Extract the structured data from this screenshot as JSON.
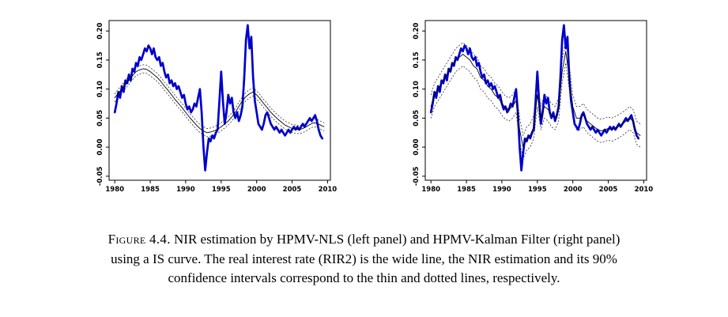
{
  "page": {
    "background": "#ffffff"
  },
  "caption": {
    "label": "Figure 4.4.",
    "text": "NIR estimation by HPMV-NLS (left panel) and HPMV-Kalman Filter (right panel) using a IS curve. The real interest rate (RIR2) is the wide line, the NIR estimation and its 90% confidence intervals correspond to the thin and dotted lines, respectively."
  },
  "chart_shared": {
    "rir2": {
      "x_start": 1980,
      "x_step": 0.25,
      "values": [
        0.06,
        0.075,
        0.095,
        0.085,
        0.105,
        0.095,
        0.115,
        0.11,
        0.125,
        0.115,
        0.135,
        0.13,
        0.145,
        0.14,
        0.155,
        0.15,
        0.16,
        0.17,
        0.165,
        0.175,
        0.17,
        0.16,
        0.17,
        0.155,
        0.15,
        0.155,
        0.14,
        0.145,
        0.13,
        0.12,
        0.125,
        0.11,
        0.115,
        0.105,
        0.11,
        0.1,
        0.105,
        0.095,
        0.085,
        0.09,
        0.075,
        0.065,
        0.07,
        0.06,
        0.065,
        0.075,
        0.07,
        0.085,
        0.1,
        0.06,
        0.0,
        -0.04,
        -0.01,
        0.015,
        0.01,
        0.02,
        0.015,
        0.025,
        0.03,
        0.08,
        0.13,
        0.08,
        0.04,
        0.06,
        0.09,
        0.075,
        0.085,
        0.06,
        0.05,
        0.06,
        0.045,
        0.055,
        0.07,
        0.12,
        0.185,
        0.21,
        0.17,
        0.19,
        0.12,
        0.08,
        0.06,
        0.04,
        0.035,
        0.03,
        0.04,
        0.055,
        0.06,
        0.05,
        0.04,
        0.035,
        0.03,
        0.035,
        0.03,
        0.025,
        0.03,
        0.025,
        0.02,
        0.025,
        0.03,
        0.025,
        0.03,
        0.035,
        0.03,
        0.035,
        0.03,
        0.035,
        0.04,
        0.035,
        0.04,
        0.045,
        0.05,
        0.045,
        0.05,
        0.055,
        0.045,
        0.03,
        0.02,
        0.015
      ]
    }
  },
  "chart_data": [
    {
      "type": "line",
      "panel": "left",
      "title": "",
      "xlabel": "",
      "ylabel": "",
      "grid": false,
      "legend": "none",
      "xlim": [
        1979.2,
        2010.4
      ],
      "ylim": [
        -0.057,
        0.218
      ],
      "x_ticks": [
        1980,
        1985,
        1990,
        1995,
        2000,
        2005,
        2010
      ],
      "x_tick_labels": [
        "1980",
        "1985",
        "1990",
        "1995",
        "2000",
        "2005",
        "2010"
      ],
      "y_ticks": [
        -0.05,
        0.0,
        0.05,
        0.1,
        0.15,
        0.2
      ],
      "y_tick_labels": [
        "-0.05",
        "0.00",
        "0.05",
        "0.10",
        "0.15",
        "0.20"
      ],
      "series": [
        {
          "name": "NIR 90 pct CI upper (NLS)",
          "style": "dotted",
          "color": "#333333",
          "width": 0.8,
          "dash": "1.4,2.6",
          "x_start": 1980,
          "x_step": 0.5,
          "values": [
            0.092,
            0.1,
            0.107,
            0.115,
            0.122,
            0.13,
            0.137,
            0.14,
            0.142,
            0.141,
            0.137,
            0.132,
            0.127,
            0.12,
            0.112,
            0.105,
            0.097,
            0.089,
            0.082,
            0.075,
            0.067,
            0.059,
            0.052,
            0.045,
            0.039,
            0.035,
            0.032,
            0.033,
            0.035,
            0.038,
            0.042,
            0.047,
            0.052,
            0.059,
            0.067,
            0.077,
            0.087,
            0.094,
            0.099,
            0.102,
            0.097,
            0.09,
            0.082,
            0.075,
            0.067,
            0.061,
            0.055,
            0.05,
            0.045,
            0.042,
            0.039,
            0.038,
            0.037,
            0.039,
            0.042,
            0.046,
            0.049,
            0.048,
            0.045,
            0.042
          ]
        },
        {
          "name": "NIR 90 pct CI lower (NLS)",
          "style": "dotted",
          "color": "#333333",
          "width": 0.8,
          "dash": "1.4,2.6",
          "x_start": 1980,
          "x_step": 0.5,
          "values": [
            0.078,
            0.086,
            0.093,
            0.101,
            0.108,
            0.116,
            0.123,
            0.126,
            0.128,
            0.127,
            0.123,
            0.118,
            0.113,
            0.106,
            0.098,
            0.091,
            0.083,
            0.075,
            0.068,
            0.061,
            0.053,
            0.045,
            0.038,
            0.031,
            0.025,
            0.021,
            0.018,
            0.019,
            0.021,
            0.024,
            0.028,
            0.033,
            0.038,
            0.045,
            0.053,
            0.063,
            0.073,
            0.08,
            0.085,
            0.088,
            0.083,
            0.076,
            0.068,
            0.061,
            0.053,
            0.047,
            0.041,
            0.036,
            0.031,
            0.028,
            0.025,
            0.024,
            0.023,
            0.025,
            0.028,
            0.032,
            0.035,
            0.034,
            0.031,
            0.028
          ]
        },
        {
          "name": "RIR2 real interest rate",
          "style": "solid",
          "color": "#0000cd",
          "width": 2.7,
          "ref": "rir2"
        },
        {
          "name": "NIR estimation HPMV-NLS",
          "style": "solid",
          "color": "#000000",
          "width": 0.9,
          "x_start": 1980,
          "x_step": 0.5,
          "values": [
            0.085,
            0.093,
            0.1,
            0.108,
            0.115,
            0.123,
            0.13,
            0.133,
            0.135,
            0.134,
            0.13,
            0.125,
            0.12,
            0.113,
            0.105,
            0.098,
            0.09,
            0.082,
            0.075,
            0.068,
            0.06,
            0.052,
            0.045,
            0.038,
            0.032,
            0.028,
            0.025,
            0.026,
            0.028,
            0.031,
            0.035,
            0.04,
            0.045,
            0.052,
            0.06,
            0.07,
            0.08,
            0.087,
            0.092,
            0.095,
            0.09,
            0.083,
            0.075,
            0.068,
            0.06,
            0.054,
            0.048,
            0.043,
            0.038,
            0.035,
            0.032,
            0.031,
            0.03,
            0.032,
            0.035,
            0.039,
            0.042,
            0.041,
            0.038,
            0.035
          ]
        }
      ]
    },
    {
      "type": "line",
      "panel": "right",
      "title": "",
      "xlabel": "",
      "ylabel": "",
      "grid": false,
      "legend": "none",
      "xlim": [
        1979.2,
        2010.4
      ],
      "ylim": [
        -0.057,
        0.218
      ],
      "x_ticks": [
        1980,
        1985,
        1990,
        1995,
        2000,
        2005,
        2010
      ],
      "x_tick_labels": [
        "1980",
        "1985",
        "1990",
        "1995",
        "2000",
        "2005",
        "2010"
      ],
      "y_ticks": [
        -0.05,
        0.0,
        0.05,
        0.1,
        0.15,
        0.2
      ],
      "y_tick_labels": [
        "-0.05",
        "0.00",
        "0.05",
        "0.10",
        "0.15",
        "0.20"
      ],
      "series": [
        {
          "name": "NIR 90 pct CI upper (Kalman)",
          "style": "dotted",
          "color": "#333333",
          "width": 0.8,
          "dash": "1.4,2.6",
          "x_start": 1980,
          "x_step": 0.5,
          "values": [
            0.09,
            0.11,
            0.12,
            0.13,
            0.14,
            0.15,
            0.16,
            0.17,
            0.175,
            0.18,
            0.175,
            0.17,
            0.16,
            0.155,
            0.14,
            0.135,
            0.125,
            0.12,
            0.11,
            0.105,
            0.095,
            0.088,
            0.085,
            0.09,
            0.1,
            0.05,
            0.02,
            0.035,
            0.04,
            0.055,
            0.11,
            0.07,
            0.09,
            0.085,
            0.075,
            0.07,
            0.085,
            0.15,
            0.185,
            0.14,
            0.09,
            0.07,
            0.07,
            0.075,
            0.065,
            0.06,
            0.055,
            0.05,
            0.048,
            0.05,
            0.052,
            0.05,
            0.053,
            0.056,
            0.06,
            0.065,
            0.07,
            0.065,
            0.045,
            0.04
          ]
        },
        {
          "name": "NIR 90 pct CI lower (Kalman)",
          "style": "dotted",
          "color": "#333333",
          "width": 0.8,
          "dash": "1.4,2.6",
          "x_start": 1980,
          "x_step": 0.5,
          "values": [
            0.05,
            0.07,
            0.08,
            0.09,
            0.1,
            0.11,
            0.12,
            0.13,
            0.135,
            0.14,
            0.135,
            0.13,
            0.12,
            0.115,
            0.1,
            0.095,
            0.085,
            0.08,
            0.07,
            0.065,
            0.055,
            0.048,
            0.045,
            0.05,
            0.06,
            0.01,
            -0.02,
            -0.005,
            0.0,
            0.015,
            0.07,
            0.03,
            0.05,
            0.045,
            0.035,
            0.03,
            0.045,
            0.11,
            0.145,
            0.1,
            0.05,
            0.03,
            0.03,
            0.035,
            0.025,
            0.02,
            0.015,
            0.01,
            0.008,
            0.01,
            0.012,
            0.01,
            0.013,
            0.016,
            0.02,
            0.025,
            0.03,
            0.025,
            0.005,
            0.0
          ]
        },
        {
          "name": "RIR2 real interest rate",
          "style": "solid",
          "color": "#0000cd",
          "width": 2.7,
          "ref": "rir2"
        },
        {
          "name": "NIR estimation HPMV-Kalman",
          "style": "solid",
          "color": "#000000",
          "width": 0.9,
          "x_start": 1980,
          "x_step": 0.5,
          "values": [
            0.07,
            0.09,
            0.1,
            0.11,
            0.12,
            0.13,
            0.14,
            0.15,
            0.155,
            0.16,
            0.155,
            0.15,
            0.14,
            0.135,
            0.12,
            0.115,
            0.105,
            0.1,
            0.09,
            0.085,
            0.075,
            0.068,
            0.065,
            0.07,
            0.08,
            0.03,
            0.0,
            0.015,
            0.02,
            0.035,
            0.09,
            0.05,
            0.07,
            0.065,
            0.055,
            0.05,
            0.065,
            0.13,
            0.165,
            0.12,
            0.07,
            0.05,
            0.05,
            0.055,
            0.045,
            0.04,
            0.035,
            0.03,
            0.028,
            0.03,
            0.032,
            0.03,
            0.033,
            0.036,
            0.04,
            0.045,
            0.05,
            0.045,
            0.025,
            0.02
          ]
        }
      ]
    }
  ]
}
